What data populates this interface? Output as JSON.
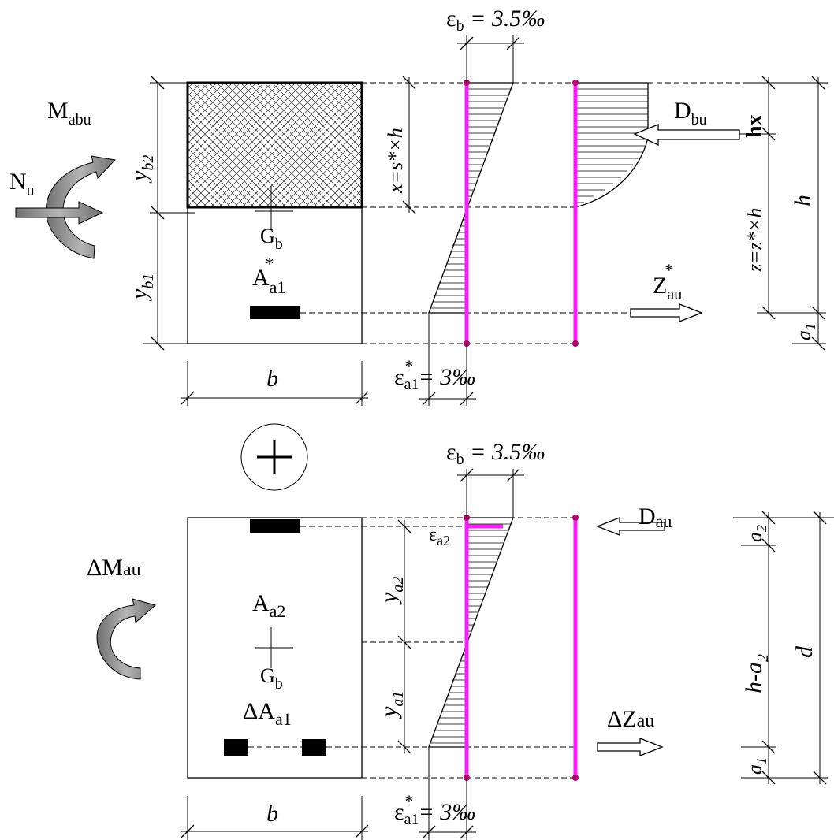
{
  "colors": {
    "reinforcement_line": "#ff1aff",
    "moment_arrow": "#8c8c8c"
  },
  "top": {
    "eps_b": "ε",
    "eps_b_sub": "b",
    "eps_b_val": " = 3.5‰",
    "eps_a1": "ε",
    "eps_a1_sub": "a1",
    "eps_a1_sup": "*",
    "eps_a1_val": "= 3‰",
    "M": "M",
    "M_sub": "abu",
    "N": "N",
    "N_sub": "u",
    "yb2": "y",
    "yb2_sub": "b2",
    "yb1": "y",
    "yb1_sub": "b1",
    "G": "G",
    "G_sub": "b",
    "A": "A",
    "A_sub": "a1",
    "A_sup": "*",
    "b": "b",
    "x_label": "x=s*×h",
    "D": "D",
    "D_sub": "bu",
    "hx": "hx",
    "Z": "Z",
    "Z_sub": "au",
    "Z_sup": "*",
    "z_label": "z=z*×h",
    "h": "h",
    "a1": "a",
    "a1_sub": "1"
  },
  "plus": "+",
  "bottom": {
    "eps_b": "ε",
    "eps_b_sub": "b",
    "eps_b_val": " = 3.5‰",
    "eps_a2": "ε",
    "eps_a2_sub": "a2",
    "eps_a1": "ε",
    "eps_a1_sub": "a1",
    "eps_a1_sup": "*",
    "eps_a1_val": "= 3‰",
    "dM": "ΔM",
    "dM_sub": "au",
    "A": "A",
    "A_sub": "a2",
    "G": "G",
    "G_sub": "b",
    "dA": "ΔA",
    "dA_sub": "a1",
    "b": "b",
    "ya2": "y",
    "ya2_sub": "a2",
    "ya1": "y",
    "ya1_sub": "a1",
    "D": "D",
    "D_sub": "au",
    "dZ": "ΔZ",
    "dZ_sub": "au",
    "a2": "a",
    "a2_sub": "2",
    "h_a2": "h-a",
    "h_a2_sub": "2",
    "d": "d",
    "a1": "a",
    "a1_sub": "1"
  }
}
